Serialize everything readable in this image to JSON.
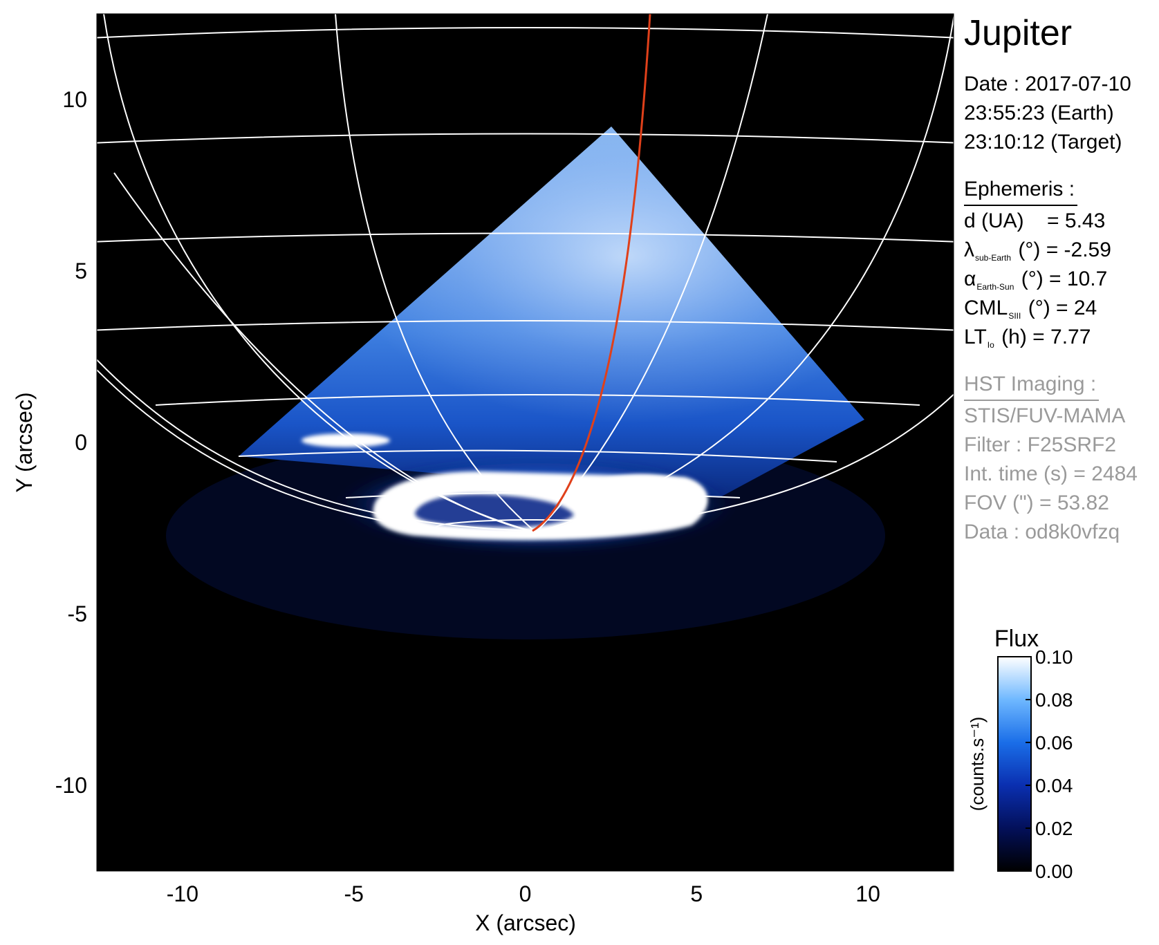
{
  "planet": "Jupiter",
  "date": {
    "line1": "Date : 2017-07-10",
    "line2": "23:55:23 (Earth)",
    "line3": "23:10:12 (Target)"
  },
  "ephemeris": {
    "heading": "Ephemeris :",
    "d_label": "d (UA)",
    "d_value": "= 5.43",
    "lambda_symbol": "λ",
    "lambda_sub": "sub-Earth",
    "lambda_rest": "(°) = -2.59",
    "alpha_symbol": "α",
    "alpha_sub": "Earth-Sun",
    "alpha_rest": "(°) = 10.7",
    "cml_symbol": "CML",
    "cml_sub": "SIII",
    "cml_rest": "(°) = 24",
    "lt_symbol": "LT",
    "lt_sub": "Io",
    "lt_rest": "(h) = 7.77"
  },
  "hst": {
    "heading": "HST Imaging :",
    "instrument": "STIS/FUV-MAMA",
    "filter": "Filter : F25SRF2",
    "int_time": "Int. time (s) = 2484",
    "fov": "FOV (\") = 53.82",
    "data": "Data : od8k0vfzq"
  },
  "axes": {
    "xlabel": "X (arcsec)",
    "ylabel": "Y (arcsec)",
    "xlim": [
      -12.5,
      12.5
    ],
    "ylim": [
      -12.5,
      12.5
    ],
    "xticks": [
      {
        "value": -10,
        "label": "-10"
      },
      {
        "value": -5,
        "label": "-5"
      },
      {
        "value": 0,
        "label": "0"
      },
      {
        "value": 5,
        "label": "5"
      },
      {
        "value": 10,
        "label": "10"
      }
    ],
    "yticks": [
      {
        "value": 10,
        "label": "10"
      },
      {
        "value": 5,
        "label": "5"
      },
      {
        "value": 0,
        "label": "0"
      },
      {
        "value": -5,
        "label": "-5"
      },
      {
        "value": -10,
        "label": "-10"
      }
    ]
  },
  "colorbar": {
    "title": "Flux",
    "unit": "(counts.s⁻¹)",
    "range": [
      0.0,
      0.1
    ],
    "ticks": [
      {
        "value": 0.1,
        "label": "0.10"
      },
      {
        "value": 0.08,
        "label": "0.08"
      },
      {
        "value": 0.06,
        "label": "0.06"
      },
      {
        "value": 0.04,
        "label": "0.04"
      },
      {
        "value": 0.02,
        "label": "0.02"
      },
      {
        "value": 0.0,
        "label": "0.00"
      }
    ]
  },
  "colors": {
    "grid": "#ffffff",
    "footprint_line": "#e0401a",
    "background": "#000000",
    "glow_blue": "#1e64dc",
    "aurora_white": "#ffffff"
  }
}
